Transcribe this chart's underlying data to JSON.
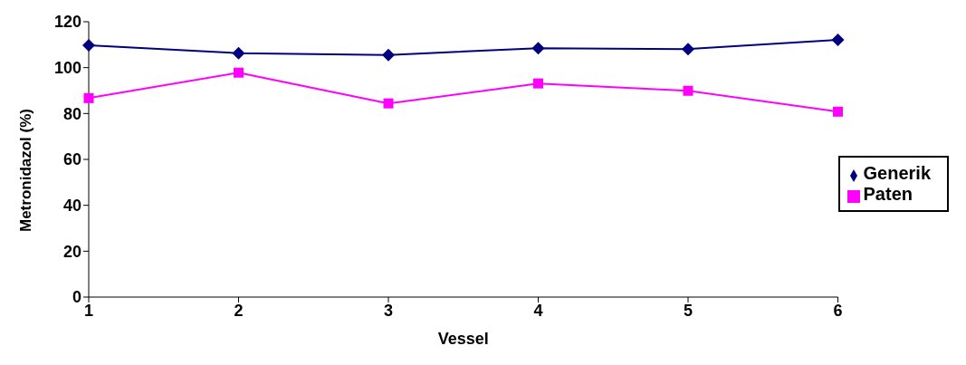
{
  "chart_data": {
    "type": "line",
    "xlabel": "Vessel",
    "ylabel": "Metronidazol (%)",
    "categories": [
      "1",
      "2",
      "3",
      "4",
      "5",
      "6"
    ],
    "series": [
      {
        "name": "Generik",
        "color": "#000080",
        "marker": "diamond",
        "values": [
          109.7,
          106.3,
          105.5,
          108.5,
          108.1,
          112.1
        ]
      },
      {
        "name": "Paten",
        "color": "#ff00ff",
        "marker": "square",
        "values": [
          86.7,
          97.8,
          84.4,
          93.1,
          89.9,
          80.8
        ]
      }
    ],
    "ylim": [
      0,
      120
    ],
    "yticks": [
      0,
      20,
      40,
      60,
      80,
      100,
      120
    ],
    "grid": false,
    "legend": "right",
    "line_style": "solid"
  }
}
